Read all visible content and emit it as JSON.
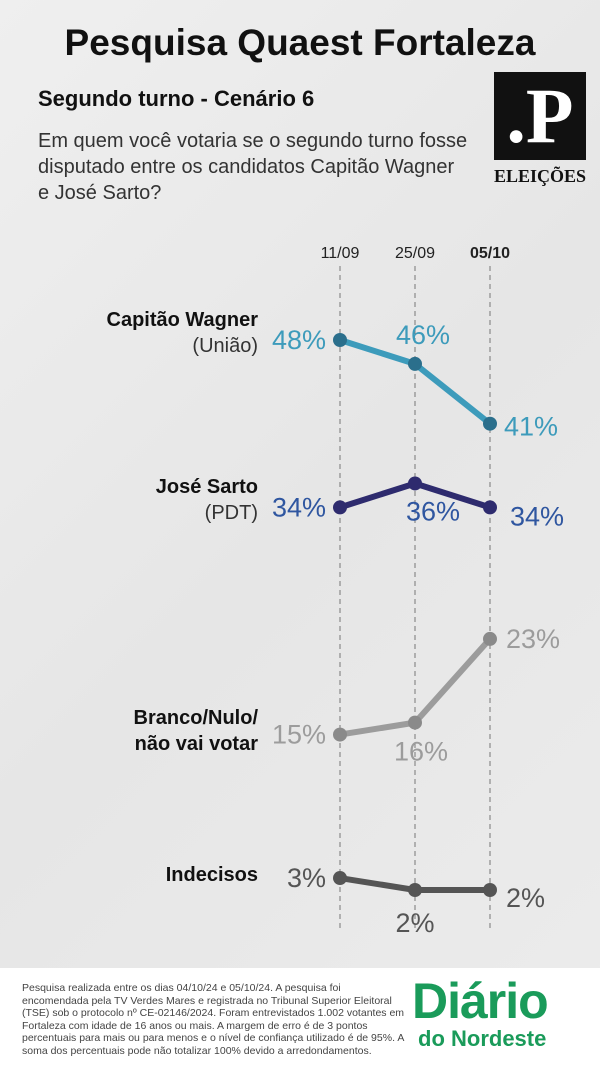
{
  "header": {
    "title": "Pesquisa Quaest Fortaleza",
    "subtitle": "Segundo turno - Cenário 6",
    "question": "Em quem você votaria se o segundo turno fosse disputado entre os candidatos Capitão Wagner e José Sarto?",
    "logo_mark": ".P",
    "logo_text": "ELEIÇÕES"
  },
  "chart_data": {
    "type": "line",
    "categories": [
      "11/09",
      "25/09",
      "05/10"
    ],
    "series": [
      {
        "name": "Capitão Wagner",
        "party": "(União)",
        "color": "#3d9bbb",
        "marker_color": "#2b6f8c",
        "label_color": "#3d9bbb",
        "values": [
          48,
          46,
          41
        ],
        "value_labels": [
          "48%",
          "46%",
          "41%"
        ]
      },
      {
        "name": "José Sarto",
        "party": "(PDT)",
        "color": "#2e2b6e",
        "marker_color": "#2e2b6e",
        "label_color": "#2f56a0",
        "values": [
          34,
          36,
          34
        ],
        "value_labels": [
          "34%",
          "36%",
          "34%"
        ]
      },
      {
        "name": "Branco/Nulo/ não vai votar",
        "color": "#9c9c9c",
        "marker_color": "#8a8a8a",
        "label_color": "#9c9c9c",
        "values": [
          15,
          16,
          23
        ],
        "value_labels": [
          "15%",
          "16%",
          "23%"
        ]
      },
      {
        "name": "Indecisos",
        "color": "#555555",
        "marker_color": "#555555",
        "label_color": "#555555",
        "values": [
          3,
          2,
          2
        ],
        "value_labels": [
          "3%",
          "2%",
          "2%"
        ]
      }
    ]
  },
  "footer": {
    "note": "Pesquisa realizada entre os dias 04/10/24 e 05/10/24. A pesquisa foi encomendada pela TV Verdes Mares e registrada no Tribunal Superior Eleitoral (TSE) sob o protocolo nº CE-02146/2024. Foram entrevistados 1.002 votantes em Fortaleza com idade de 16 anos ou mais. A margem de erro é de 3 pontos percentuais para mais ou para menos e o nível de confiança utilizado é de 95%. A soma dos percentuais pode não totalizar 100% devido a arredondamentos.",
    "brand": "Diário",
    "brand_sub": "do Nordeste"
  }
}
